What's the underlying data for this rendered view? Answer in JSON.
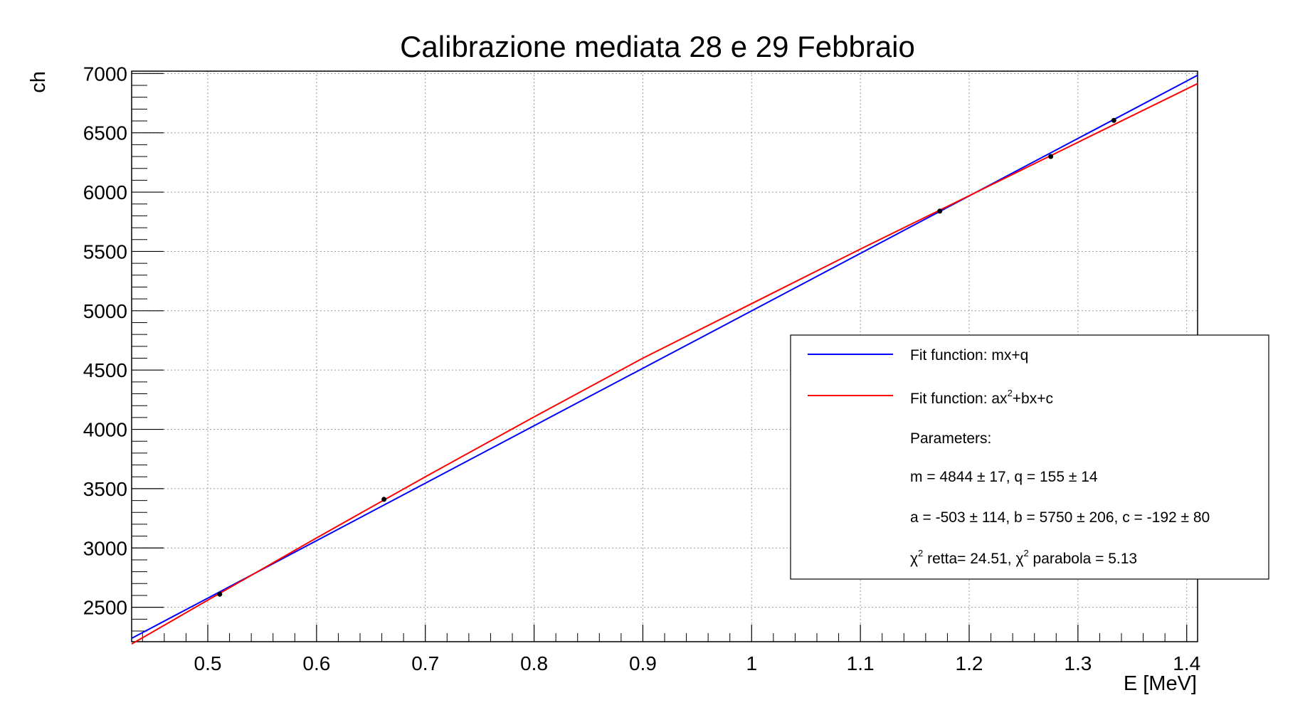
{
  "chart_data": {
    "type": "scatter",
    "title": "Calibrazione mediata 28 e 29 Febbraio",
    "xlabel": "E [MeV]",
    "ylabel": "ch",
    "xlim": [
      0.43,
      1.41
    ],
    "ylim": [
      2210,
      7020
    ],
    "grid": true,
    "x_ticks": [
      0.5,
      0.6,
      0.7,
      0.8,
      0.9,
      1,
      1.1,
      1.2,
      1.3,
      1.4
    ],
    "x_tick_labels": [
      "0.5",
      "0.6",
      "0.7",
      "0.8",
      "0.9",
      "1",
      "1.1",
      "1.2",
      "1.3",
      "1.4"
    ],
    "y_ticks": [
      2500,
      3000,
      3500,
      4000,
      4500,
      5000,
      5500,
      6000,
      6500,
      7000
    ],
    "y_tick_labels": [
      "2500",
      "3000",
      "3500",
      "4000",
      "4500",
      "5000",
      "5500",
      "6000",
      "6500",
      "7000"
    ],
    "points": {
      "x": [
        0.511,
        0.662,
        1.173,
        1.275,
        1.333
      ],
      "y": [
        2610,
        3410,
        5840,
        6300,
        6605
      ]
    },
    "series": [
      {
        "label": "Fit function: mx+q",
        "color": "#0000ff",
        "x": [
          0.43,
          1.41
        ],
        "y": [
          2238,
          6985
        ]
      },
      {
        "label_base": "Fit function: ax",
        "label_sup": "2",
        "label_rest": "+bx+c",
        "color": "#ff0000",
        "x": [
          0.43,
          0.5,
          0.6,
          0.7,
          0.8,
          0.9,
          1.0,
          1.1,
          1.2,
          1.3,
          1.41
        ],
        "y": [
          2190,
          2560,
          3085,
          3600,
          4105,
          4600,
          5060,
          5520,
          5970,
          6420,
          6915
        ]
      }
    ],
    "legend": {
      "position": "bottom-right",
      "parameters_label": "Parameters:",
      "line_m": "m = 4844 ± 17, q = 155 ± 14",
      "line_abc": "a = -503 ± 114, b = 5750 ± 206, c = -192 ± 80",
      "chi_symbol": "χ",
      "chi_sup": "2",
      "chi_retta": " retta= 24.51, ",
      "chi_parabola": " parabola = 5.13"
    }
  }
}
